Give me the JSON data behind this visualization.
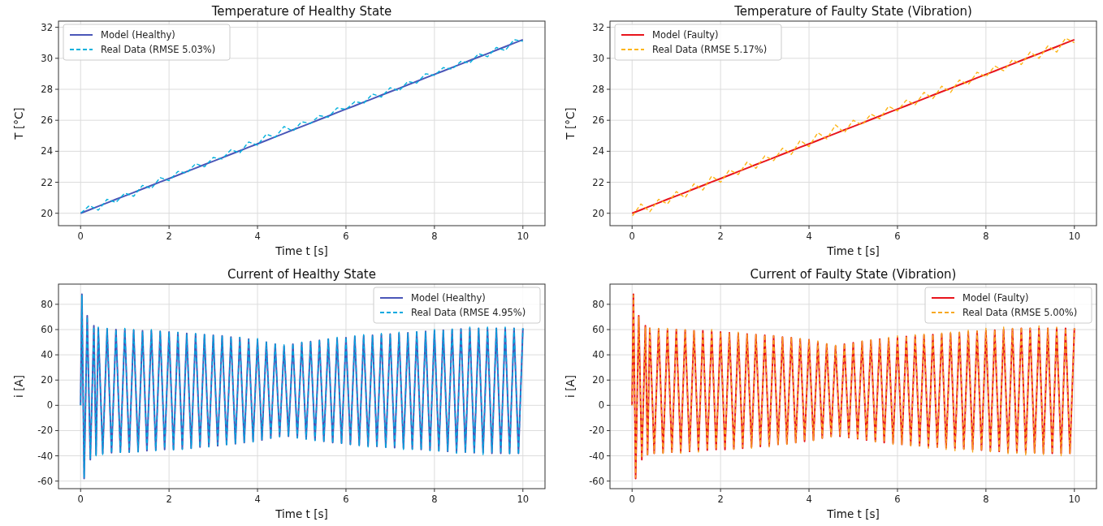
{
  "chart_data": [
    {
      "type": "line",
      "title": "Temperature of Healthy State",
      "xlabel": "Time t [s]",
      "ylabel": "T [°C]",
      "xlim": [
        -0.5,
        10.5
      ],
      "xticks": [
        0,
        2,
        4,
        6,
        8,
        10
      ],
      "ylim": [
        19.2,
        32.4
      ],
      "yticks": [
        20,
        22,
        24,
        26,
        28,
        30,
        32
      ],
      "grid": true,
      "legend": "top left",
      "x": [
        0,
        0.2,
        0.4,
        0.6,
        0.8,
        1,
        1.2,
        1.4,
        1.6,
        1.8,
        2,
        2.2,
        2.4,
        2.6,
        2.8,
        3,
        3.2,
        3.4,
        3.6,
        3.8,
        4,
        4.2,
        4.4,
        4.6,
        4.8,
        5,
        5.2,
        5.4,
        5.6,
        5.8,
        6,
        6.2,
        6.4,
        6.6,
        6.8,
        7,
        7.2,
        7.4,
        7.6,
        7.8,
        8,
        8.2,
        8.4,
        8.6,
        8.8,
        9,
        9.2,
        9.4,
        9.6,
        9.8,
        10
      ],
      "series": [
        {
          "name": "Model (Healthy)",
          "color": "#4a56b8",
          "line_style": "solid",
          "values": [
            20,
            20.22,
            20.45,
            20.67,
            20.9,
            21.12,
            21.34,
            21.57,
            21.79,
            22.02,
            22.24,
            22.46,
            22.69,
            22.91,
            23.14,
            23.36,
            23.58,
            23.81,
            24.03,
            24.26,
            24.48,
            24.7,
            24.93,
            25.15,
            25.38,
            25.6,
            25.82,
            26.05,
            26.27,
            26.5,
            26.72,
            26.94,
            27.17,
            27.39,
            27.62,
            27.84,
            28.06,
            28.29,
            28.51,
            28.74,
            28.96,
            29.18,
            29.41,
            29.63,
            29.86,
            30.08,
            30.3,
            30.53,
            30.75,
            30.98,
            31.2
          ]
        },
        {
          "name": "Real Data (RMSE 5.03%)",
          "color": "#00b0dc",
          "line_style": "dashed",
          "values": [
            20.0,
            20.5,
            20.2,
            20.9,
            20.7,
            21.3,
            21.1,
            21.8,
            21.6,
            22.3,
            22.1,
            22.7,
            22.6,
            23.2,
            23.0,
            23.6,
            23.5,
            24.1,
            23.9,
            24.6,
            24.4,
            25.1,
            24.9,
            25.6,
            25.3,
            25.9,
            25.8,
            26.3,
            26.2,
            26.8,
            26.7,
            27.2,
            27.1,
            27.7,
            27.5,
            28.1,
            27.9,
            28.5,
            28.4,
            29.0,
            28.9,
            29.4,
            29.3,
            29.8,
            29.7,
            30.3,
            30.1,
            30.7,
            30.5,
            31.2,
            31.1
          ]
        }
      ]
    },
    {
      "type": "line",
      "title": "Temperature of Faulty State (Vibration)",
      "xlabel": "Time t [s]",
      "ylabel": "T [°C]",
      "xlim": [
        -0.5,
        10.5
      ],
      "xticks": [
        0,
        2,
        4,
        6,
        8,
        10
      ],
      "ylim": [
        19.2,
        32.4
      ],
      "yticks": [
        20,
        22,
        24,
        26,
        28,
        30,
        32
      ],
      "grid": true,
      "legend": "top left",
      "x": [
        0,
        0.2,
        0.4,
        0.6,
        0.8,
        1,
        1.2,
        1.4,
        1.6,
        1.8,
        2,
        2.2,
        2.4,
        2.6,
        2.8,
        3,
        3.2,
        3.4,
        3.6,
        3.8,
        4,
        4.2,
        4.4,
        4.6,
        4.8,
        5,
        5.2,
        5.4,
        5.6,
        5.8,
        6,
        6.2,
        6.4,
        6.6,
        6.8,
        7,
        7.2,
        7.4,
        7.6,
        7.8,
        8,
        8.2,
        8.4,
        8.6,
        8.8,
        9,
        9.2,
        9.4,
        9.6,
        9.8,
        10
      ],
      "series": [
        {
          "name": "Model (Faulty)",
          "color": "#e8141c",
          "line_style": "solid",
          "values": [
            20,
            20.22,
            20.45,
            20.67,
            20.9,
            21.12,
            21.34,
            21.57,
            21.79,
            22.02,
            22.24,
            22.46,
            22.69,
            22.91,
            23.14,
            23.36,
            23.58,
            23.81,
            24.03,
            24.26,
            24.48,
            24.7,
            24.93,
            25.15,
            25.38,
            25.6,
            25.82,
            26.05,
            26.27,
            26.5,
            26.72,
            26.94,
            27.17,
            27.39,
            27.62,
            27.84,
            28.06,
            28.29,
            28.51,
            28.74,
            28.96,
            29.18,
            29.41,
            29.63,
            29.86,
            30.08,
            30.3,
            30.53,
            30.75,
            30.98,
            31.2
          ]
        },
        {
          "name": "Real Data (RMSE 5.17%)",
          "color": "#fdb515",
          "line_style": "dashed",
          "values": [
            19.8,
            20.6,
            20.1,
            20.9,
            20.6,
            21.4,
            21.0,
            21.9,
            21.5,
            22.4,
            22.0,
            22.8,
            22.5,
            23.3,
            22.9,
            23.7,
            23.4,
            24.2,
            23.8,
            24.7,
            24.3,
            25.2,
            24.8,
            25.7,
            25.2,
            26.0,
            25.7,
            26.4,
            26.1,
            26.9,
            26.6,
            27.3,
            27.0,
            27.8,
            27.4,
            28.2,
            27.8,
            28.6,
            28.3,
            29.1,
            28.8,
            29.5,
            29.2,
            29.9,
            29.6,
            30.4,
            30.0,
            30.8,
            30.4,
            31.3,
            31.0
          ]
        }
      ]
    },
    {
      "type": "line",
      "title": "Current of Healthy State",
      "xlabel": "Time t [s]",
      "ylabel": "i [A]",
      "xlim": [
        -0.5,
        10.5
      ],
      "xticks": [
        0,
        2,
        4,
        6,
        8,
        10
      ],
      "ylim": [
        -66,
        96
      ],
      "yticks": [
        -60,
        -40,
        -20,
        0,
        20,
        40,
        60,
        80
      ],
      "grid": true,
      "legend": "top right",
      "x": [
        0,
        0.03,
        0.08,
        0.15,
        0.22,
        0.3,
        0.35,
        0.4,
        0.5,
        0.6,
        0.7,
        0.8,
        0.9,
        1,
        1.1,
        1.2,
        1.3,
        1.4,
        1.5,
        1.6,
        1.7,
        1.8,
        1.9,
        2,
        2.1,
        2.2,
        2.3,
        2.4,
        2.5,
        2.6,
        2.7,
        2.8,
        2.9,
        3,
        3.1,
        3.2,
        3.3,
        3.4,
        3.5,
        3.6,
        3.7,
        3.8,
        3.9,
        4,
        4.1,
        4.2,
        4.3,
        4.4,
        4.5,
        4.6,
        4.7,
        4.8,
        4.9,
        5,
        5.1,
        5.2,
        5.3,
        5.4,
        5.5,
        5.6,
        5.7,
        5.8,
        5.9,
        6,
        6.1,
        6.2,
        6.3,
        6.4,
        6.5,
        6.6,
        6.7,
        6.8,
        6.9,
        7,
        7.1,
        7.2,
        7.3,
        7.4,
        7.5,
        7.6,
        7.7,
        7.8,
        7.9,
        8,
        8.1,
        8.2,
        8.3,
        8.4,
        8.5,
        8.6,
        8.7,
        8.8,
        8.9,
        9,
        9.1,
        9.2,
        9.3,
        9.4,
        9.5,
        9.6,
        9.7,
        9.8,
        9.9,
        10
      ],
      "series": [
        {
          "name": "Model (Healthy)",
          "color": "#4a56b8",
          "line_style": "solid",
          "values": [
            0,
            88,
            -58,
            71,
            -43,
            63,
            -39,
            61,
            -38,
            60.5,
            -37.5,
            60,
            -37,
            60,
            -37,
            59.5,
            -36.5,
            59,
            -36,
            59,
            -35.5,
            58.5,
            -35,
            58,
            -35,
            57.5,
            -34.5,
            57,
            -34,
            56.5,
            -33,
            56,
            -32.5,
            55.5,
            -32,
            55,
            -31,
            54,
            -30.5,
            53.5,
            -29.5,
            52.5,
            -28.5,
            52,
            -27.5,
            50,
            -26,
            48.5,
            -24.5,
            47,
            -24.5,
            48.5,
            -25.5,
            49.5,
            -26.5,
            50.5,
            -27.5,
            51.5,
            -28.5,
            52.5,
            -29.5,
            53,
            -30,
            53.5,
            -31,
            54.5,
            -31.5,
            55,
            -32,
            55.5,
            -32.5,
            56,
            -33,
            56.5,
            -33.5,
            57,
            -34,
            57.5,
            -34.5,
            58,
            -35,
            58.5,
            -35.5,
            59,
            -36,
            59.5,
            -36.5,
            60,
            -37,
            60.5,
            -37,
            61,
            -37.5,
            61,
            -37.5,
            61,
            -38,
            61,
            -38,
            61,
            -38,
            61,
            -38,
            61
          ]
        },
        {
          "name": "Real Data (RMSE 4.95%)",
          "color": "#00a9e0",
          "line_style": "dashed",
          "values": [
            0,
            87,
            -57,
            70,
            -42,
            62,
            -40,
            62,
            -39,
            61,
            -38,
            60,
            -38,
            61,
            -37,
            60,
            -37,
            58,
            -36,
            60,
            -36,
            59,
            -34,
            58,
            -36,
            58,
            -35,
            56,
            -34,
            57,
            -33,
            56,
            -33,
            55,
            -31,
            55,
            -32,
            54,
            -30,
            54,
            -29,
            52,
            -29,
            53,
            -27,
            50,
            -26,
            49,
            -25,
            48,
            -24,
            49,
            -26,
            50,
            -27,
            50,
            -28,
            52,
            -29,
            53,
            -30,
            54,
            -30,
            54,
            -31,
            55,
            -32,
            56,
            -33,
            55,
            -33,
            57,
            -34,
            56,
            -33,
            58,
            -35,
            57,
            -35,
            59,
            -35,
            58,
            -36,
            60,
            -37,
            59,
            -36,
            61,
            -38,
            60,
            -37,
            62,
            -38,
            61,
            -39,
            62,
            -37,
            61,
            -38,
            62,
            -39,
            61,
            -39,
            61
          ]
        }
      ]
    },
    {
      "type": "line",
      "title": "Current of Faulty State (Vibration)",
      "xlabel": "Time t [s]",
      "ylabel": "i [A]",
      "xlim": [
        -0.5,
        10.5
      ],
      "xticks": [
        0,
        2,
        4,
        6,
        8,
        10
      ],
      "ylim": [
        -66,
        96
      ],
      "yticks": [
        -60,
        -40,
        -20,
        0,
        20,
        40,
        60,
        80
      ],
      "grid": true,
      "legend": "top right",
      "x": [
        0,
        0.03,
        0.08,
        0.15,
        0.22,
        0.3,
        0.35,
        0.4,
        0.5,
        0.6,
        0.7,
        0.8,
        0.9,
        1,
        1.1,
        1.2,
        1.3,
        1.4,
        1.5,
        1.6,
        1.7,
        1.8,
        1.9,
        2,
        2.1,
        2.2,
        2.3,
        2.4,
        2.5,
        2.6,
        2.7,
        2.8,
        2.9,
        3,
        3.1,
        3.2,
        3.3,
        3.4,
        3.5,
        3.6,
        3.7,
        3.8,
        3.9,
        4,
        4.1,
        4.2,
        4.3,
        4.4,
        4.5,
        4.6,
        4.7,
        4.8,
        4.9,
        5,
        5.1,
        5.2,
        5.3,
        5.4,
        5.5,
        5.6,
        5.7,
        5.8,
        5.9,
        6,
        6.1,
        6.2,
        6.3,
        6.4,
        6.5,
        6.6,
        6.7,
        6.8,
        6.9,
        7,
        7.1,
        7.2,
        7.3,
        7.4,
        7.5,
        7.6,
        7.7,
        7.8,
        7.9,
        8,
        8.1,
        8.2,
        8.3,
        8.4,
        8.5,
        8.6,
        8.7,
        8.8,
        8.9,
        9,
        9.1,
        9.2,
        9.3,
        9.4,
        9.5,
        9.6,
        9.7,
        9.8,
        9.9,
        10
      ],
      "series": [
        {
          "name": "Model (Faulty)",
          "color": "#e8141c",
          "line_style": "solid",
          "values": [
            0,
            88,
            -58,
            71,
            -43,
            63,
            -39,
            61,
            -38,
            60.5,
            -37.5,
            60,
            -37,
            60,
            -37,
            59.5,
            -36.5,
            59,
            -36,
            59,
            -35.5,
            58.5,
            -35,
            58,
            -35,
            57.5,
            -34.5,
            57,
            -34,
            56.5,
            -33,
            56,
            -32.5,
            55.5,
            -32,
            55,
            -31,
            54,
            -30.5,
            53.5,
            -29.5,
            52.5,
            -28.5,
            52,
            -27.5,
            50,
            -26,
            48.5,
            -24.5,
            47,
            -24.5,
            48.5,
            -25.5,
            49.5,
            -26.5,
            50.5,
            -27.5,
            51.5,
            -28.5,
            52.5,
            -29.5,
            53,
            -30,
            53.5,
            -31,
            54.5,
            -31.5,
            55,
            -32,
            55.5,
            -32.5,
            56,
            -33,
            56.5,
            -33.5,
            57,
            -34,
            57.5,
            -34.5,
            58,
            -35,
            58.5,
            -35.5,
            59,
            -36,
            59.5,
            -36.5,
            60,
            -37,
            60.5,
            -37,
            61,
            -37.5,
            61,
            -37.5,
            61,
            -38,
            61,
            -38,
            61,
            -38,
            61,
            -38,
            61
          ]
        },
        {
          "name": "Real Data (RMSE 5.00%)",
          "color": "#f7a823",
          "line_style": "dashed",
          "values": [
            0,
            87,
            -57,
            70,
            -42,
            62,
            -40,
            62,
            -38,
            61,
            -39,
            61,
            -37,
            60,
            -38,
            60,
            -36,
            59,
            -37,
            58,
            -35,
            60,
            -35,
            58,
            -34,
            57,
            -35,
            58,
            -33,
            56,
            -34,
            56,
            -32,
            56,
            -33,
            55,
            -31,
            54,
            -31,
            54,
            -30,
            53,
            -28,
            52,
            -28,
            51,
            -26,
            49,
            -25,
            48,
            -24,
            49,
            -25,
            50,
            -27,
            51,
            -27,
            52,
            -29,
            52,
            -29,
            54,
            -31,
            55,
            -31,
            55,
            -33,
            56,
            -32,
            57,
            -34,
            56,
            -33,
            58,
            -35,
            58,
            -36,
            59,
            -35,
            60,
            -37,
            59,
            -36,
            61,
            -38,
            60,
            -37,
            62,
            -39,
            61,
            -38,
            62,
            -40,
            61,
            -38,
            63,
            -39,
            61,
            -38,
            62,
            -40,
            61,
            -38,
            61
          ]
        }
      ]
    }
  ]
}
